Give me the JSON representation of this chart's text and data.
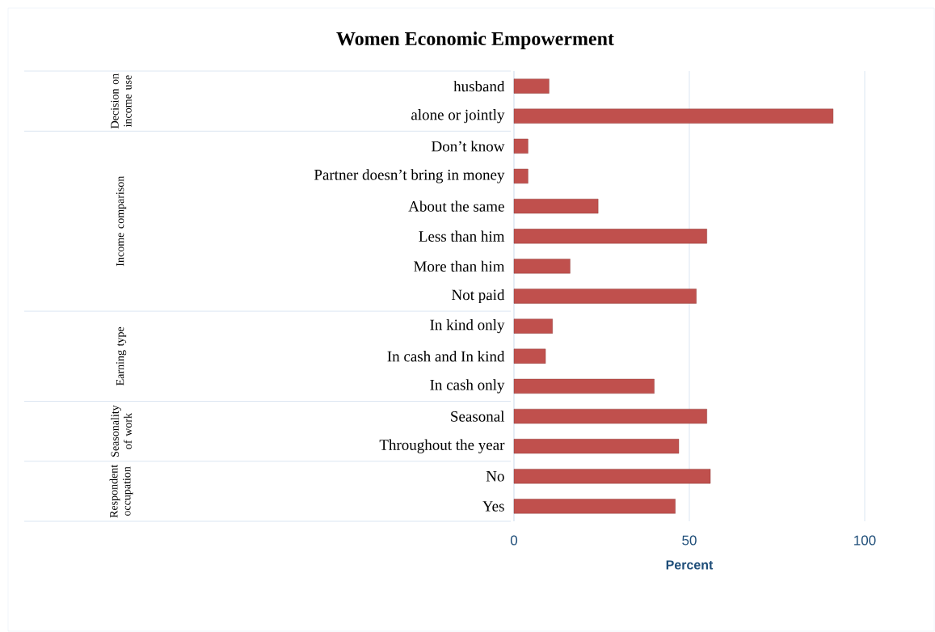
{
  "chart_data": {
    "type": "bar",
    "orientation": "horizontal",
    "title": "Women Economic Empowerment",
    "xlabel": "Percent",
    "categories": [
      "husband",
      "alone or jointly",
      "Don’t know",
      "Partner doesn’t bring in money",
      "About the same",
      "Less than him",
      "More than him",
      "Not paid",
      "In kind only",
      "In cash and  In kind",
      "In cash  only",
      "Seasonal",
      "Throughout the year",
      "No",
      "Yes"
    ],
    "values": [
      10,
      91,
      4,
      4,
      24,
      55,
      16,
      52,
      11,
      9,
      40,
      55,
      47,
      56,
      46
    ],
    "color": "#c0504d",
    "xlim": [
      0,
      100
    ],
    "xticks": [
      0,
      50,
      100
    ],
    "grid": "x",
    "annotations": [
      "Decision on income use",
      "Income comparison",
      "Earning type",
      "Seasonality of work",
      "Respondent occupation"
    ]
  }
}
